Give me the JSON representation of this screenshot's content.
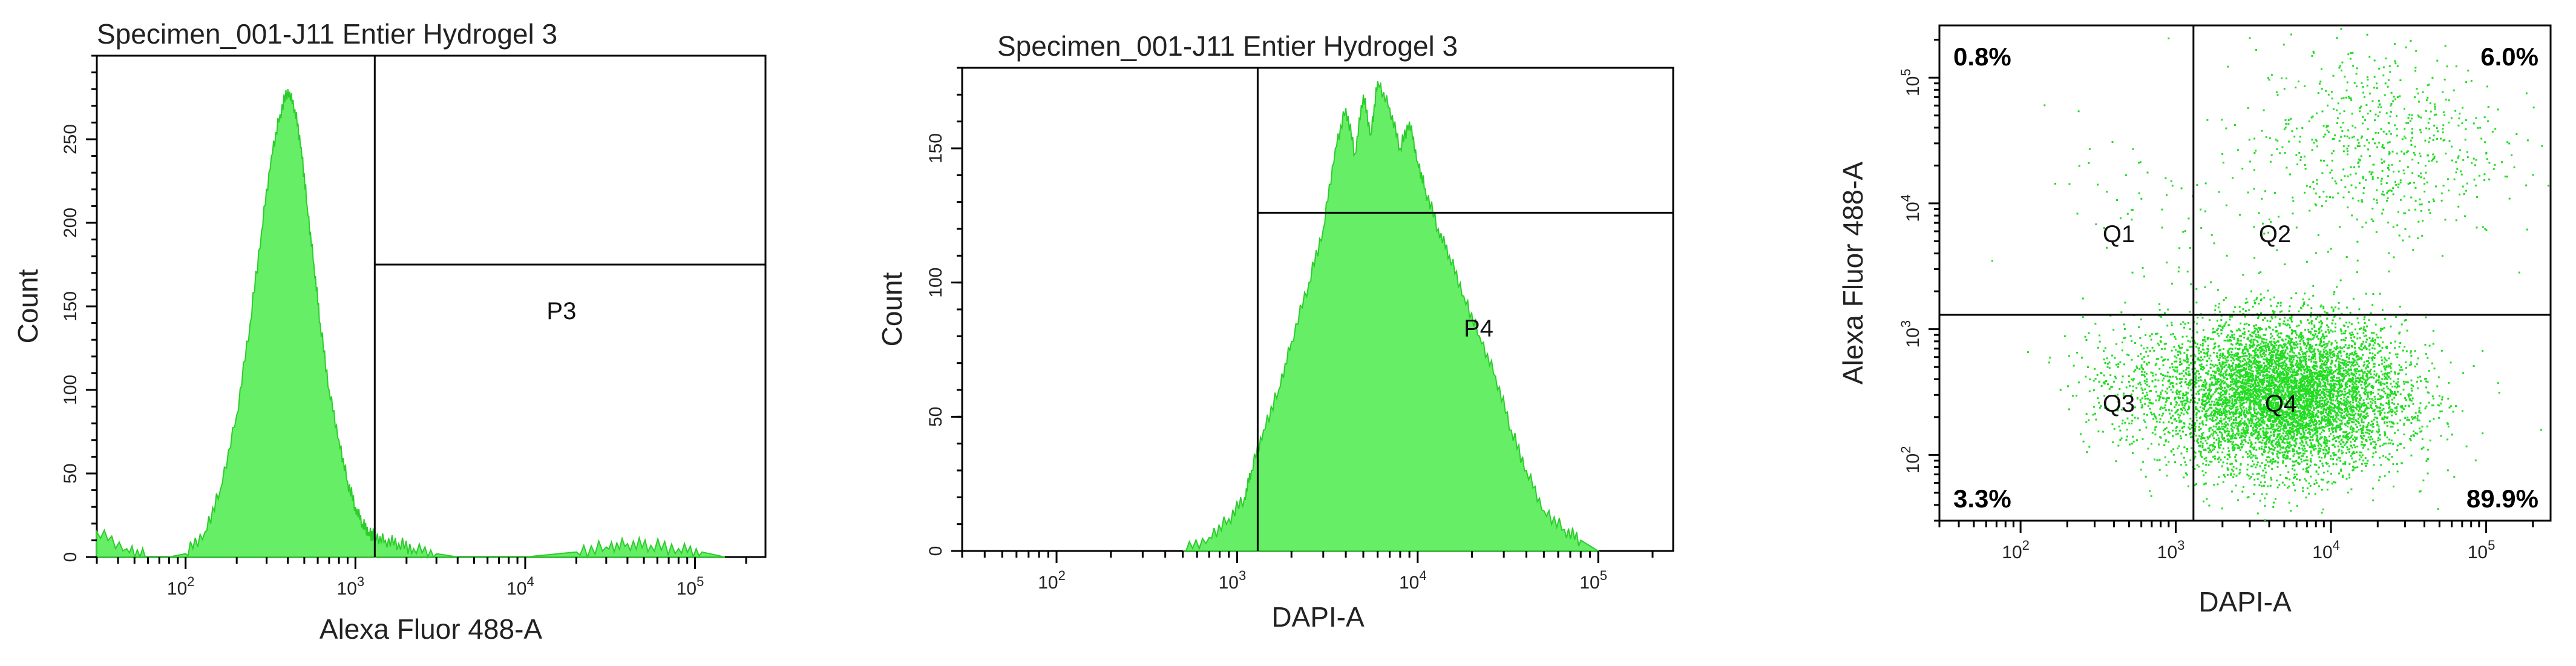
{
  "chart_data": [
    {
      "type": "area",
      "title": "Specimen_001-J11 Entier Hydrogel 3",
      "xlabel": "Alexa Fluor 488-A",
      "ylabel": "Count",
      "xscale": "log",
      "xlim": [
        30,
        260000
      ],
      "ylim": [
        0,
        300
      ],
      "x_ticks": [
        "10^2",
        "10^3",
        "10^4",
        "10^5"
      ],
      "y_ticks": [
        "0",
        "50",
        "100",
        "150",
        "200",
        "250"
      ],
      "fill_color": "#66ee66",
      "series": [
        {
          "x": [
            30,
            45,
            60,
            80,
            100,
            130,
            160,
            200,
            240,
            280,
            320,
            360,
            400,
            440,
            480,
            520,
            570,
            620,
            700,
            800,
            900,
            1000,
            1100,
            1200,
            1300,
            1500,
            1800,
            2200,
            3000,
            4000,
            6000,
            10000,
            20000,
            30000,
            40000,
            55000,
            80000,
            110000,
            150000
          ],
          "y": [
            15,
            5,
            0,
            0,
            2,
            15,
            40,
            85,
            140,
            195,
            240,
            265,
            280,
            268,
            245,
            210,
            175,
            140,
            100,
            70,
            45,
            30,
            20,
            15,
            12,
            10,
            8,
            5,
            2,
            0,
            0,
            0,
            3,
            6,
            8,
            7,
            5,
            3,
            0
          ]
        }
      ],
      "gates": [
        {
          "label": "P3",
          "x_range": [
            1300,
            260000
          ],
          "y": 175
        }
      ]
    },
    {
      "type": "area",
      "title": "Specimen_001-J11 Entier Hydrogel 3",
      "xlabel": "DAPI-A",
      "ylabel": "Count",
      "xscale": "log",
      "xlim": [
        30,
        260000
      ],
      "ylim": [
        0,
        180
      ],
      "x_ticks": [
        "10^2",
        "10^3",
        "10^4",
        "10^5"
      ],
      "y_ticks": [
        "0",
        "50",
        "100",
        "150"
      ],
      "fill_color": "#66ee66",
      "series": [
        {
          "x": [
            500,
            700,
            900,
            1100,
            1200,
            1400,
            1700,
            2000,
            2500,
            3000,
            3500,
            4000,
            4500,
            5000,
            5500,
            6000,
            7000,
            8000,
            9000,
            10000,
            11000,
            13000,
            15000,
            18000,
            22000,
            27000,
            33000,
            40000,
            50000,
            65000,
            80000,
            100000
          ],
          "y": [
            0,
            5,
            12,
            20,
            30,
            45,
            60,
            78,
            100,
            120,
            150,
            165,
            148,
            170,
            155,
            175,
            165,
            150,
            160,
            145,
            135,
            120,
            110,
            95,
            80,
            65,
            45,
            30,
            15,
            8,
            4,
            0
          ]
        }
      ],
      "gates": [
        {
          "label": "P4",
          "x_range": [
            1300,
            260000
          ],
          "y": 126
        }
      ]
    },
    {
      "type": "scatter",
      "xlabel": "DAPI-A",
      "ylabel": "Alexa Fluor 488-A",
      "xscale": "log",
      "yscale": "log",
      "xlim": [
        30,
        260000
      ],
      "ylim": [
        30,
        260000
      ],
      "x_ticks": [
        "10^2",
        "10^3",
        "10^4",
        "10^5"
      ],
      "y_ticks": [
        "10^2",
        "10^3",
        "10^4",
        "10^5"
      ],
      "point_color": "#22dd22",
      "quadrant_divider": {
        "x": 1300,
        "y": 1300
      },
      "quadrants": [
        {
          "label": "Q1",
          "percent": "0.8%"
        },
        {
          "label": "Q2",
          "percent": "6.0%"
        },
        {
          "label": "Q3",
          "percent": "3.3%"
        },
        {
          "label": "Q4",
          "percent": "89.9%"
        }
      ],
      "clusters": [
        {
          "center_x": 5000,
          "center_y": 300,
          "spread_log": 0.35,
          "count": 7000
        },
        {
          "center_x": 20000,
          "center_y": 30000,
          "spread_log": 0.4,
          "count": 650
        },
        {
          "center_x": 600,
          "center_y": 400,
          "spread_log": 0.25,
          "count": 250
        },
        {
          "center_x": 900,
          "center_y": 8000,
          "spread_log": 0.4,
          "count": 80
        }
      ]
    }
  ]
}
